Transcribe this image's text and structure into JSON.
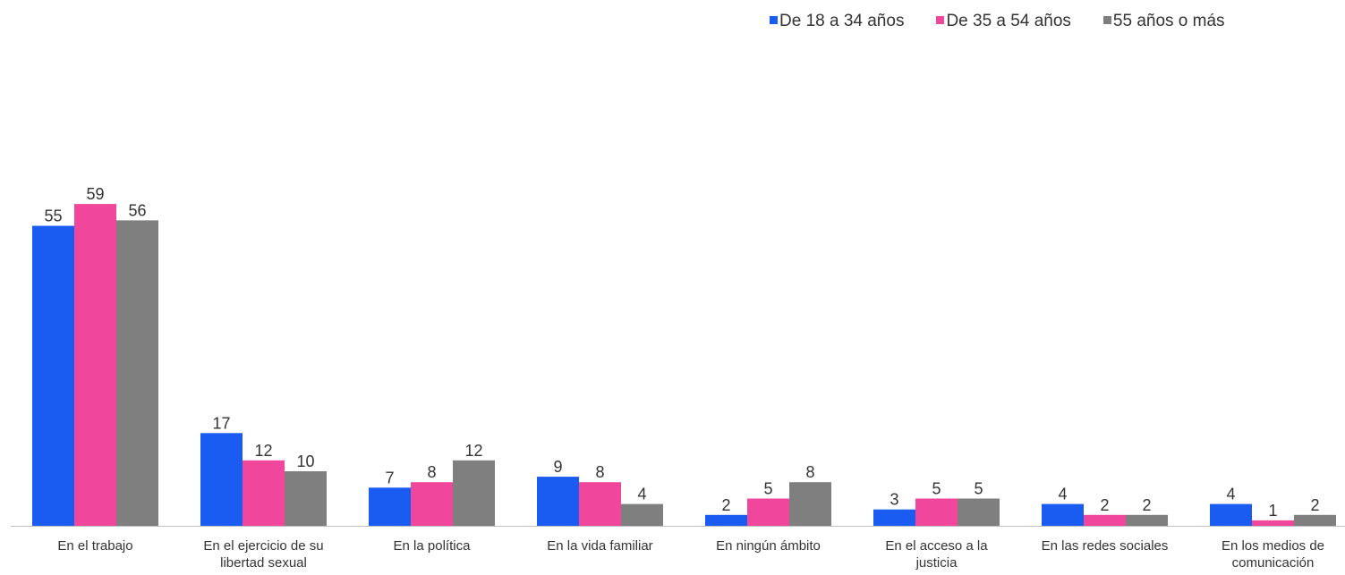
{
  "chart_data": {
    "type": "bar",
    "title": "",
    "xlabel": "",
    "ylabel": "",
    "ylim": [
      0,
      62
    ],
    "grid": false,
    "legend_position": "top-right",
    "categories": [
      "En el trabajo",
      "En el ejercicio de su libertad sexual",
      "En la política",
      "En la vida familiar",
      "En ningún ámbito",
      "En el acceso a la justicia",
      "En las redes sociales",
      "En los medios de comunicación"
    ],
    "series": [
      {
        "name": "De 18 a 34 años",
        "color": "#1a5cf2",
        "values": [
          55,
          17,
          7,
          9,
          2,
          3,
          4,
          4
        ]
      },
      {
        "name": "De 35 a 54 años",
        "color": "#f0479c",
        "values": [
          59,
          12,
          8,
          8,
          5,
          5,
          2,
          1
        ]
      },
      {
        "name": "55 años o más",
        "color": "#7f7f7f",
        "values": [
          56,
          10,
          12,
          4,
          8,
          5,
          2,
          2
        ]
      }
    ]
  }
}
